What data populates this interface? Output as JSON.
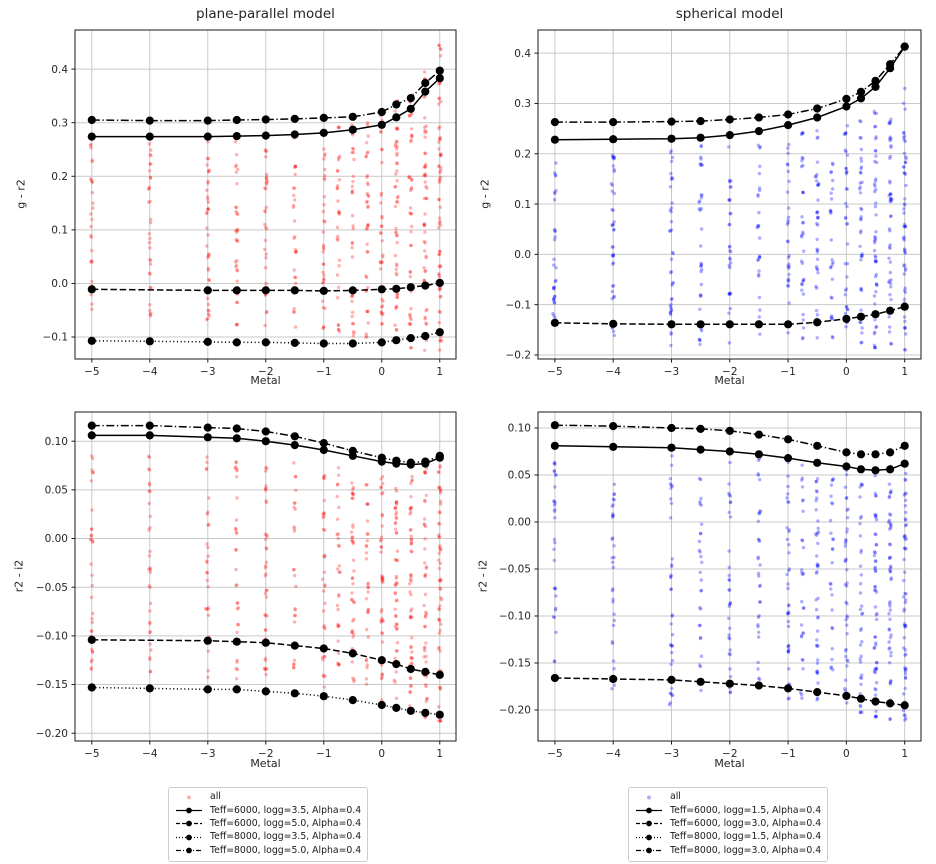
{
  "chart_data": [
    {
      "type": "scatter",
      "title": "plane-parallel model",
      "xlabel": "Metal",
      "ylabel": "g - r2",
      "xlim": [
        -5.29,
        1.28
      ],
      "ylim": [
        -0.141,
        0.473
      ],
      "xticks": [
        -5,
        -4,
        -3,
        -2,
        -1,
        0,
        1
      ],
      "yticks": [
        -0.1,
        0.0,
        0.1,
        0.2,
        0.3,
        0.4
      ],
      "ytick_decimals": 1,
      "grid": true,
      "scatter": {
        "label": "all",
        "color": "#ff0000",
        "alpha": 0.3,
        "seed": 7,
        "x": [
          -5,
          -4,
          -3,
          -2.5,
          -2,
          -1.5,
          -1,
          -0.75,
          -0.5,
          -0.25,
          0,
          0.25,
          0.5,
          0.75,
          1
        ],
        "count": [
          30,
          30,
          33,
          28,
          30,
          28,
          33,
          26,
          33,
          26,
          36,
          40,
          44,
          50,
          56
        ],
        "ymin": [
          -0.075,
          -0.078,
          -0.08,
          -0.08,
          -0.082,
          -0.085,
          -0.09,
          -0.1,
          -0.105,
          -0.11,
          -0.115,
          -0.12,
          -0.125,
          -0.13,
          -0.13
        ],
        "ymax": [
          0.265,
          0.265,
          0.268,
          0.268,
          0.27,
          0.275,
          0.285,
          0.295,
          0.3,
          0.31,
          0.325,
          0.345,
          0.365,
          0.4,
          0.45
        ]
      },
      "series": [
        {
          "name": "Teff=6000, logg=3.5, Alpha=0.4",
          "style": "solid",
          "x": [
            -5,
            -4,
            -3,
            -2.5,
            -2,
            -1.5,
            -1,
            -0.5,
            0,
            0.25,
            0.5,
            0.75,
            1
          ],
          "y": [
            0.274,
            0.274,
            0.274,
            0.275,
            0.276,
            0.278,
            0.281,
            0.287,
            0.296,
            0.31,
            0.326,
            0.358,
            0.383
          ]
        },
        {
          "name": "Teff=6000, logg=5.0, Alpha=0.4",
          "style": "dashed",
          "x": [
            -5,
            -3,
            -2.5,
            -2,
            -1.5,
            -1,
            -0.5,
            0,
            0.25,
            0.5,
            0.75,
            1
          ],
          "y": [
            -0.011,
            -0.013,
            -0.013,
            -0.013,
            -0.013,
            -0.014,
            -0.013,
            -0.011,
            -0.01,
            -0.007,
            -0.004,
            0.001
          ]
        },
        {
          "name": "Teff=8000, logg=3.5, Alpha=0.4",
          "style": "dotted",
          "x": [
            -5,
            -4,
            -3,
            -2.5,
            -2,
            -1.5,
            -1,
            -0.5,
            0,
            0.25,
            0.5,
            0.75,
            1
          ],
          "y": [
            -0.107,
            -0.108,
            -0.109,
            -0.11,
            -0.11,
            -0.111,
            -0.112,
            -0.112,
            -0.11,
            -0.106,
            -0.102,
            -0.098,
            -0.091
          ]
        },
        {
          "name": "Teff=8000, logg=5.0, Alpha=0.4",
          "style": "dashdot",
          "x": [
            -5,
            -4,
            -3,
            -2.5,
            -2,
            -1.5,
            -1,
            -0.5,
            0,
            0.25,
            0.5,
            0.75,
            1
          ],
          "y": [
            0.305,
            0.304,
            0.304,
            0.305,
            0.306,
            0.307,
            0.309,
            0.311,
            0.32,
            0.334,
            0.346,
            0.374,
            0.397
          ]
        }
      ]
    },
    {
      "type": "scatter",
      "title": "spherical model",
      "xlabel": "Metal",
      "ylabel": "g - r2",
      "xlim": [
        -5.29,
        1.28
      ],
      "ylim": [
        -0.208,
        0.446
      ],
      "xticks": [
        -5,
        -4,
        -3,
        -2,
        -1,
        0,
        1
      ],
      "yticks": [
        -0.2,
        -0.1,
        0.0,
        0.1,
        0.2,
        0.3,
        0.4
      ],
      "ytick_decimals": 1,
      "grid": true,
      "scatter": {
        "label": "all",
        "color": "#0000ff",
        "alpha": 0.32,
        "seed": 13,
        "x": [
          -5,
          -4,
          -3,
          -2.5,
          -2,
          -1.5,
          -1,
          -0.75,
          -0.5,
          -0.25,
          0,
          0.25,
          0.5,
          0.75,
          1
        ],
        "count": [
          32,
          30,
          34,
          28,
          32,
          28,
          34,
          26,
          34,
          28,
          38,
          42,
          46,
          52,
          58
        ],
        "ymin": [
          -0.13,
          -0.168,
          -0.185,
          -0.183,
          -0.18,
          -0.178,
          -0.175,
          -0.172,
          -0.17,
          -0.168,
          -0.17,
          -0.18,
          -0.19,
          -0.195,
          -0.195
        ],
        "ymax": [
          0.215,
          0.215,
          0.218,
          0.22,
          0.225,
          0.23,
          0.24,
          0.245,
          0.25,
          0.255,
          0.26,
          0.27,
          0.285,
          0.305,
          0.335
        ]
      },
      "series": [
        {
          "name": "Teff=6000, logg=1.5, Alpha=0.4",
          "style": "solid",
          "x": [
            -5,
            -4,
            -3,
            -2.5,
            -2,
            -1.5,
            -1,
            -0.5,
            0,
            0.25,
            0.5,
            0.75,
            1
          ],
          "y": [
            0.228,
            0.229,
            0.23,
            0.232,
            0.237,
            0.245,
            0.257,
            0.272,
            0.294,
            0.31,
            0.333,
            0.37,
            0.413
          ]
        },
        {
          "name": "Teff=6000, logg=3.0, Alpha=0.4",
          "style": "dashed",
          "x": [
            -5,
            -4,
            -3,
            -2.5,
            -2,
            -1.5,
            -1,
            -0.5,
            0,
            0.25,
            0.5,
            0.75,
            1
          ],
          "y": [
            -0.136,
            -0.138,
            -0.139,
            -0.139,
            -0.139,
            -0.139,
            -0.139,
            -0.135,
            -0.128,
            -0.124,
            -0.119,
            -0.112,
            -0.104
          ]
        },
        {
          "name": "Teff=8000, logg=3.0, Alpha=0.4",
          "style": "dashdot",
          "x": [
            -5,
            -4,
            -3,
            -2.5,
            -2,
            -1.5,
            -1,
            -0.5,
            0,
            0.25,
            0.5,
            0.75,
            1
          ],
          "y": [
            0.263,
            0.263,
            0.264,
            0.265,
            0.268,
            0.272,
            0.278,
            0.29,
            0.309,
            0.323,
            0.345,
            0.378,
            0.413
          ]
        }
      ]
    },
    {
      "type": "scatter",
      "title": "",
      "xlabel": "Metal",
      "ylabel": "r2 - i2",
      "xlim": [
        -5.29,
        1.28
      ],
      "ylim": [
        -0.208,
        0.13
      ],
      "xticks": [
        -5,
        -4,
        -3,
        -2,
        -1,
        0,
        1
      ],
      "yticks": [
        -0.2,
        -0.15,
        -0.1,
        -0.05,
        0.0,
        0.05,
        0.1
      ],
      "ytick_decimals": 2,
      "grid": true,
      "scatter": {
        "label": "all",
        "color": "#ff0000",
        "alpha": 0.3,
        "seed": 21,
        "x": [
          -5,
          -4,
          -3,
          -2.5,
          -2,
          -1.5,
          -1,
          -0.75,
          -0.5,
          -0.25,
          0,
          0.25,
          0.5,
          0.75,
          1
        ],
        "count": [
          30,
          30,
          32,
          27,
          30,
          27,
          32,
          25,
          32,
          25,
          35,
          40,
          44,
          48,
          54
        ],
        "ymin": [
          -0.135,
          -0.14,
          -0.145,
          -0.148,
          -0.15,
          -0.152,
          -0.155,
          -0.158,
          -0.16,
          -0.163,
          -0.168,
          -0.175,
          -0.18,
          -0.185,
          -0.19
        ],
        "ymax": [
          0.087,
          0.087,
          0.086,
          0.086,
          0.085,
          0.08,
          0.078,
          0.075,
          0.072,
          0.07,
          0.068,
          0.066,
          0.07,
          0.075,
          0.078
        ]
      },
      "series": [
        {
          "name": "Teff=6000, logg=3.5, Alpha=0.4",
          "style": "solid",
          "x": [
            -5,
            -4,
            -3,
            -2.5,
            -2,
            -1.5,
            -1,
            -0.5,
            0,
            0.25,
            0.5,
            0.75,
            1
          ],
          "y": [
            0.106,
            0.106,
            0.104,
            0.103,
            0.1,
            0.096,
            0.091,
            0.085,
            0.079,
            0.077,
            0.076,
            0.077,
            0.083
          ]
        },
        {
          "name": "Teff=6000, logg=5.0, Alpha=0.4",
          "style": "dashed",
          "x": [
            -5,
            -3,
            -2.5,
            -2,
            -1.5,
            -1,
            -0.5,
            0,
            0.25,
            0.5,
            0.75,
            1
          ],
          "y": [
            -0.104,
            -0.105,
            -0.106,
            -0.107,
            -0.11,
            -0.113,
            -0.118,
            -0.125,
            -0.129,
            -0.134,
            -0.137,
            -0.14
          ]
        },
        {
          "name": "Teff=8000, logg=3.5, Alpha=0.4",
          "style": "dotted",
          "x": [
            -5,
            -4,
            -3,
            -2.5,
            -2,
            -1.5,
            -1,
            -0.5,
            0,
            0.25,
            0.5,
            0.75,
            1
          ],
          "y": [
            -0.153,
            -0.154,
            -0.155,
            -0.155,
            -0.157,
            -0.159,
            -0.162,
            -0.166,
            -0.171,
            -0.174,
            -0.177,
            -0.179,
            -0.181
          ]
        },
        {
          "name": "Teff=8000, logg=5.0, Alpha=0.4",
          "style": "dashdot",
          "x": [
            -5,
            -4,
            -3,
            -2.5,
            -2,
            -1.5,
            -1,
            -0.5,
            0,
            0.25,
            0.5,
            0.75,
            1
          ],
          "y": [
            0.116,
            0.116,
            0.114,
            0.113,
            0.11,
            0.105,
            0.098,
            0.09,
            0.083,
            0.08,
            0.078,
            0.079,
            0.085
          ]
        }
      ]
    },
    {
      "type": "scatter",
      "title": "",
      "xlabel": "Metal",
      "ylabel": "r2 - i2",
      "xlim": [
        -5.29,
        1.28
      ],
      "ylim": [
        -0.233,
        0.117
      ],
      "xticks": [
        -5,
        -4,
        -3,
        -2,
        -1,
        0,
        1
      ],
      "yticks": [
        -0.2,
        -0.15,
        -0.1,
        -0.05,
        0.0,
        0.05,
        0.1
      ],
      "ytick_decimals": 2,
      "grid": true,
      "scatter": {
        "label": "all",
        "color": "#0000ff",
        "alpha": 0.32,
        "seed": 29,
        "x": [
          -5,
          -4,
          -3,
          -2.5,
          -2,
          -1.5,
          -1,
          -0.75,
          -0.5,
          -0.25,
          0,
          0.25,
          0.5,
          0.75,
          1
        ],
        "count": [
          30,
          30,
          33,
          27,
          31,
          27,
          33,
          26,
          33,
          26,
          36,
          40,
          45,
          50,
          56
        ],
        "ymin": [
          -0.155,
          -0.18,
          -0.195,
          -0.19,
          -0.188,
          -0.186,
          -0.19,
          -0.19,
          -0.19,
          -0.192,
          -0.195,
          -0.205,
          -0.21,
          -0.212,
          -0.215
        ],
        "ymax": [
          0.075,
          0.074,
          0.073,
          0.072,
          0.071,
          0.068,
          0.066,
          0.064,
          0.062,
          0.06,
          0.058,
          0.058,
          0.06,
          0.062,
          0.065
        ]
      },
      "series": [
        {
          "name": "Teff=6000, logg=1.5, Alpha=0.4",
          "style": "solid",
          "x": [
            -5,
            -4,
            -3,
            -2.5,
            -2,
            -1.5,
            -1,
            -0.5,
            0,
            0.25,
            0.5,
            0.75,
            1
          ],
          "y": [
            0.081,
            0.08,
            0.079,
            0.077,
            0.075,
            0.072,
            0.068,
            0.063,
            0.059,
            0.056,
            0.055,
            0.056,
            0.062
          ]
        },
        {
          "name": "Teff=6000, logg=3.0, Alpha=0.4",
          "style": "dashed",
          "x": [
            -5,
            -4,
            -3,
            -2.5,
            -2,
            -1.5,
            -1,
            -0.5,
            0,
            0.25,
            0.5,
            0.75,
            1
          ],
          "y": [
            -0.166,
            -0.167,
            -0.168,
            -0.17,
            -0.172,
            -0.174,
            -0.177,
            -0.181,
            -0.185,
            -0.188,
            -0.191,
            -0.193,
            -0.195
          ]
        },
        {
          "name": "Teff=8000, logg=3.0, Alpha=0.4",
          "style": "dashdot",
          "x": [
            -5,
            -4,
            -3,
            -2.5,
            -2,
            -1.5,
            -1,
            -0.5,
            0,
            0.25,
            0.5,
            0.75,
            1
          ],
          "y": [
            0.103,
            0.102,
            0.1,
            0.099,
            0.097,
            0.093,
            0.088,
            0.081,
            0.074,
            0.072,
            0.072,
            0.074,
            0.081
          ]
        }
      ]
    }
  ],
  "legends": {
    "left": {
      "entries": [
        {
          "label": "all",
          "style": "scatter",
          "color": "#ff0000",
          "alpha": 0.3
        },
        {
          "label": "Teff=6000, logg=3.5, Alpha=0.4",
          "style": "solid",
          "color": "#000000"
        },
        {
          "label": "Teff=6000, logg=5.0, Alpha=0.4",
          "style": "dashed",
          "color": "#000000"
        },
        {
          "label": "Teff=8000, logg=3.5, Alpha=0.4",
          "style": "dotted",
          "color": "#000000"
        },
        {
          "label": "Teff=8000, logg=5.0, Alpha=0.4",
          "style": "dashdot",
          "color": "#000000"
        }
      ]
    },
    "right": {
      "entries": [
        {
          "label": "all",
          "style": "scatter",
          "color": "#0000ff",
          "alpha": 0.32
        },
        {
          "label": "Teff=6000, logg=1.5, Alpha=0.4",
          "style": "solid",
          "color": "#000000"
        },
        {
          "label": "Teff=6000, logg=3.0, Alpha=0.4",
          "style": "dashed",
          "color": "#000000"
        },
        {
          "label": "Teff=8000, logg=1.5, Alpha=0.4",
          "style": "dotted",
          "color": "#000000"
        },
        {
          "label": "Teff=8000, logg=3.0, Alpha=0.4",
          "style": "dashdot",
          "color": "#000000"
        }
      ]
    }
  },
  "style_colors": {
    "grid": "#c9c9c9",
    "spine": "#1a1a1a",
    "line": "#000000"
  }
}
